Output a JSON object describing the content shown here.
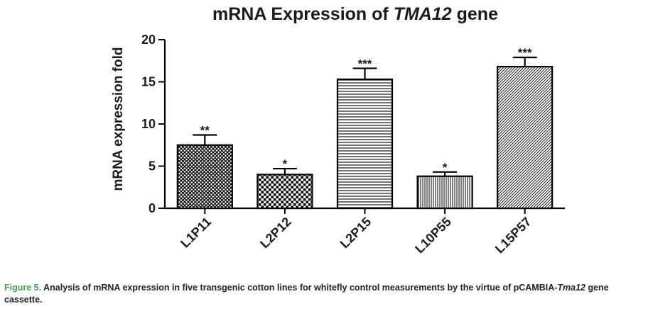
{
  "chart_data": {
    "type": "bar",
    "title_prefix": "mRNA Expression of ",
    "title_italic": "TMA12",
    "title_suffix": " gene",
    "xlabel": "",
    "ylabel": "mRNA expression fold",
    "ylim": [
      0,
      20
    ],
    "yticks": [
      "0",
      "5",
      "10",
      "15",
      "20"
    ],
    "ytick_values": [
      0,
      5,
      10,
      15,
      20
    ],
    "grid": false,
    "categories": [
      "L1P11",
      "L2P12",
      "L2P15",
      "L10P55",
      "L15P57"
    ],
    "values": [
      7.5,
      4.0,
      15.3,
      3.8,
      16.8
    ],
    "errors": [
      1.2,
      0.7,
      1.3,
      0.5,
      1.1
    ],
    "significance": [
      "**",
      "*",
      "***",
      "*",
      "***"
    ],
    "patterns": [
      "crosshatch",
      "checker",
      "horizontal-lines",
      "vertical-lines",
      "diagonal-lines"
    ],
    "colors": {
      "bar_stroke": "#000000",
      "pattern": "#000000"
    }
  },
  "caption": {
    "label": "Figure 5.",
    "text_before": " Analysis of mRNA expression in five transgenic cotton lines for whitefly control measurements by the virtue of pCAMBIA-",
    "text_italic": "Tma12",
    "text_after": " gene cassette.",
    "label_color": "#3aa84a"
  }
}
